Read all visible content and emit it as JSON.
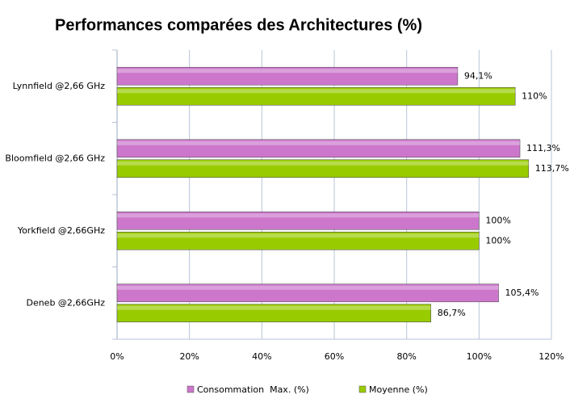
{
  "chart_data": {
    "type": "bar",
    "orientation": "horizontal",
    "title": "Performances comparées des Architectures (%)",
    "categories": [
      "Lynnfield @2,66 GHz",
      "Bloomfield @2,66 GHz",
      "Yorkfield @2,66GHz",
      "Deneb @2,66GHz"
    ],
    "series": [
      {
        "name": "Consommation  Max. (%)",
        "color": "#cc77cc",
        "values": [
          94.1,
          111.3,
          100,
          105.4
        ],
        "value_labels": [
          "94,1%",
          "111,3%",
          "100%",
          "105,4%"
        ]
      },
      {
        "name": "Moyenne (%)",
        "color": "#99cc00",
        "values": [
          110,
          113.7,
          100,
          86.7
        ],
        "value_labels": [
          "110%",
          "113,7%",
          "100%",
          "86,7%"
        ]
      }
    ],
    "xlim": [
      0,
      120
    ],
    "xticks": [
      {
        "value": 0,
        "label": "0%"
      },
      {
        "value": 20,
        "label": "20%"
      },
      {
        "value": 40,
        "label": "40%"
      },
      {
        "value": 60,
        "label": "60%"
      },
      {
        "value": 80,
        "label": "80%"
      },
      {
        "value": 100,
        "label": "100%"
      },
      {
        "value": 120,
        "label": "120%"
      }
    ],
    "grid": true,
    "legend": "bottom"
  }
}
